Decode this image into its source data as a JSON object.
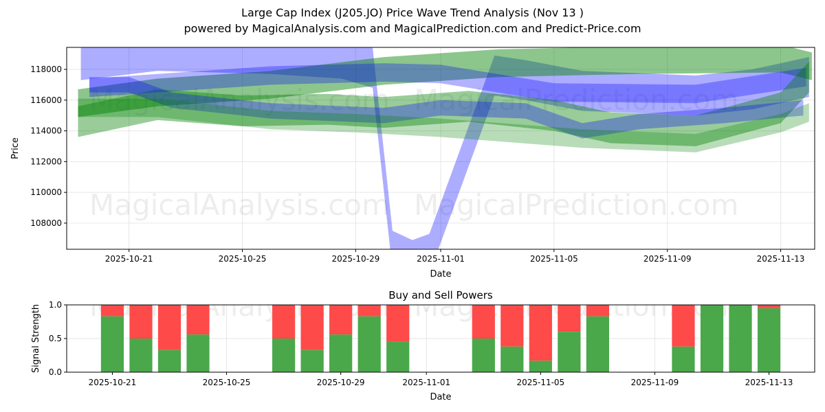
{
  "header": {
    "title": "Large Cap Index (J205.JO) Price Wave Trend Analysis (Nov 13 )",
    "subtitle": "powered by MagicalAnalysis.com and MagicalPrediction.com and Predict-Price.com"
  },
  "watermarks": [
    "MagicalAnalysis.com",
    "MagicalPrediction.com"
  ],
  "chart_data": [
    {
      "type": "area",
      "title": "",
      "xlabel": "Date",
      "ylabel": "Price",
      "x_units": "days since 2025-10-01",
      "xlim": [
        17.8,
        44.2
      ],
      "ylim": [
        106300,
        119430
      ],
      "grid": true,
      "xticks": [
        {
          "v": 20,
          "label": "2025-10-21"
        },
        {
          "v": 24,
          "label": "2025-10-25"
        },
        {
          "v": 28,
          "label": "2025-10-29"
        },
        {
          "v": 31,
          "label": "2025-11-01"
        },
        {
          "v": 35,
          "label": "2025-11-05"
        },
        {
          "v": 39,
          "label": "2025-11-09"
        },
        {
          "v": 43,
          "label": "2025-11-13"
        }
      ],
      "yticks": [
        108000,
        110000,
        112000,
        114000,
        116000,
        118000
      ],
      "bands": [
        {
          "color": "#0000ff",
          "opacity": 0.32,
          "halfwidth": 1300,
          "points": [
            [
              18.3,
              118600
            ],
            [
              21,
              119200
            ],
            [
              25,
              119000
            ],
            [
              27.5,
              118700
            ],
            [
              28.6,
              118100
            ],
            [
              29.3,
              106200
            ],
            [
              30,
              105600
            ],
            [
              30.6,
              106000
            ],
            [
              32.9,
              117600
            ],
            [
              34,
              117300
            ],
            [
              36,
              116600
            ],
            [
              40,
              116300
            ],
            [
              42,
              116700
            ],
            [
              44,
              117500
            ]
          ]
        },
        {
          "color": "#008000",
          "opacity": 0.45,
          "halfwidth": 900,
          "points": [
            [
              18.2,
              115800
            ],
            [
              21,
              116500
            ],
            [
              25,
              117000
            ],
            [
              29,
              117900
            ],
            [
              33,
              118400
            ],
            [
              38,
              118600
            ],
            [
              43,
              118700
            ],
            [
              44.1,
              118200
            ]
          ]
        },
        {
          "color": "#0000ff",
          "opacity": 0.3,
          "halfwidth": 600,
          "points": [
            [
              18.6,
              116800
            ],
            [
              21,
              117100
            ],
            [
              25,
              117600
            ],
            [
              29,
              117800
            ],
            [
              31,
              117700
            ],
            [
              35,
              116500
            ],
            [
              40,
              116400
            ],
            [
              43.9,
              117500
            ]
          ]
        },
        {
          "color": "#008000",
          "opacity": 0.4,
          "halfwidth": 1000,
          "points": [
            [
              18.2,
              114600
            ],
            [
              21,
              115700
            ],
            [
              24,
              115300
            ],
            [
              27,
              115400
            ],
            [
              29,
              115200
            ],
            [
              32,
              115600
            ],
            [
              35,
              115000
            ],
            [
              37,
              114200
            ],
            [
              40,
              114000
            ],
            [
              43,
              115500
            ],
            [
              44,
              117500
            ]
          ]
        },
        {
          "color": "#0000ff",
          "opacity": 0.3,
          "halfwidth": 500,
          "points": [
            [
              18.6,
              117000
            ],
            [
              20,
              117000
            ],
            [
              21.5,
              116000
            ],
            [
              25,
              115300
            ],
            [
              29,
              115000
            ],
            [
              31,
              115500
            ],
            [
              34,
              115300
            ],
            [
              36,
              114000
            ],
            [
              38,
              114600
            ],
            [
              41,
              115000
            ],
            [
              43.8,
              115500
            ]
          ]
        },
        {
          "color": "#008000",
          "opacity": 0.28,
          "halfwidth": 600,
          "points": [
            [
              18.2,
              115500
            ],
            [
              21,
              115500
            ],
            [
              25,
              114700
            ],
            [
              28,
              114500
            ],
            [
              31,
              114200
            ],
            [
              36,
              113500
            ],
            [
              40,
              113200
            ],
            [
              43,
              114500
            ],
            [
              44,
              115200
            ]
          ]
        }
      ]
    },
    {
      "type": "bar",
      "title": "Buy and Sell Powers",
      "xlabel": "Date",
      "ylabel": "Signal Strength",
      "x_units": "days since 2025-10-01",
      "xlim": [
        18.4,
        44.6
      ],
      "ylim": [
        0,
        1
      ],
      "grid": true,
      "xticks": [
        {
          "v": 20,
          "label": "2025-10-21"
        },
        {
          "v": 24,
          "label": "2025-10-25"
        },
        {
          "v": 28,
          "label": "2025-10-29"
        },
        {
          "v": 31,
          "label": "2025-11-01"
        },
        {
          "v": 35,
          "label": "2025-11-05"
        },
        {
          "v": 39,
          "label": "2025-11-09"
        },
        {
          "v": 43,
          "label": "2025-11-13"
        }
      ],
      "yticks": [
        "0.0",
        "0.5",
        "1.0"
      ],
      "buy_color": "#4aa84a",
      "sell_color": "#ff4a4a",
      "x": [
        20,
        21,
        22,
        23,
        26,
        27,
        28,
        29,
        30,
        33,
        34,
        35,
        36,
        37,
        40,
        41,
        42,
        43
      ],
      "buy": [
        0.83,
        0.5,
        0.33,
        0.56,
        0.5,
        0.33,
        0.56,
        0.83,
        0.45,
        0.5,
        0.38,
        0.17,
        0.6,
        0.83,
        0.38,
        1.0,
        1.0,
        0.95
      ]
    }
  ]
}
